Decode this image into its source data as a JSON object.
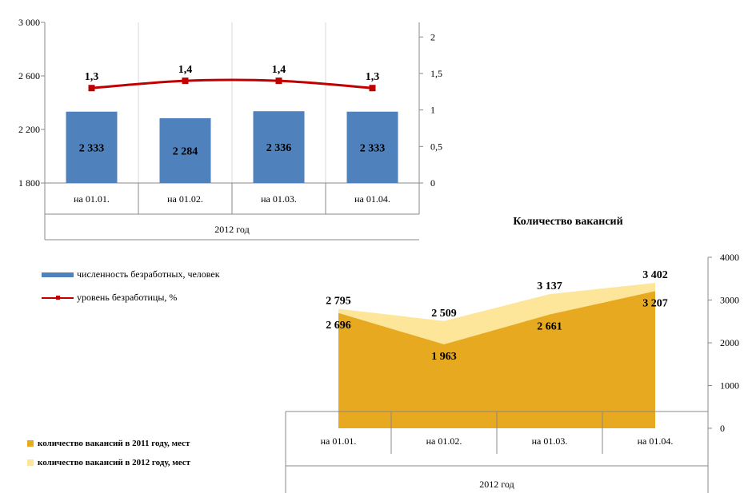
{
  "chart_data": [
    {
      "type": "bar",
      "categories": [
        "на 01.01.",
        "на 01.02.",
        "на 01.03.",
        "на 01.04."
      ],
      "group_label": "2012 год",
      "series": [
        {
          "name": "численность безработных, человек",
          "values": [
            2333,
            2284,
            2336,
            2333
          ],
          "axis": "left",
          "color": "#4f81bd",
          "labels": [
            "2 333",
            "2 284",
            "2 336",
            "2 333"
          ]
        },
        {
          "name": "уровень безработицы, %",
          "type": "line",
          "values": [
            1.3,
            1.4,
            1.4,
            1.3
          ],
          "axis": "right",
          "color": "#c00000",
          "labels": [
            "1,3",
            "1,4",
            "1,4",
            "1,3"
          ]
        }
      ],
      "ylim": [
        1800,
        3000
      ],
      "yticks": [
        "1 800",
        "2 200",
        "2 600",
        "3 000"
      ],
      "ytick_values": [
        1800,
        2200,
        2600,
        3000
      ],
      "y2lim": [
        0,
        2.2
      ],
      "y2ticks": [
        "0",
        "0,5",
        "1",
        "1,5",
        "2"
      ],
      "y2tick_values": [
        0,
        0.5,
        1,
        1.5,
        2
      ],
      "grid": "vertical"
    },
    {
      "type": "area",
      "title": "Количество вакансий",
      "categories": [
        "на 01.01.",
        "на 01.02.",
        "на 01.03.",
        "на 01.04."
      ],
      "group_label": "2012 год",
      "series": [
        {
          "name": "количество вакансий в 2012 году, мест",
          "values": [
            2795,
            2509,
            3137,
            3402
          ],
          "color": "#fde59a",
          "labels": [
            "2 795",
            "2 509",
            "3 137",
            "3 402"
          ]
        },
        {
          "name": "количество вакансий в 2011 году, мест",
          "values": [
            2696,
            1963,
            2661,
            3207
          ],
          "color": "#e6a91f",
          "labels": [
            "2 696",
            "1 963",
            "2 661",
            "3 207"
          ]
        }
      ],
      "ylim": [
        0,
        4000
      ],
      "yticks": [
        "0",
        "1000",
        "2000",
        "3000",
        "4000"
      ],
      "ytick_values": [
        0,
        1000,
        2000,
        3000,
        4000
      ]
    }
  ]
}
